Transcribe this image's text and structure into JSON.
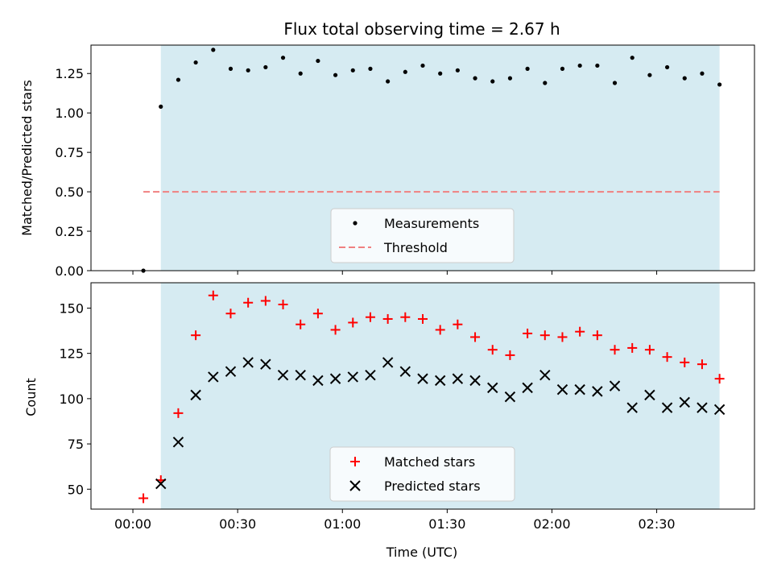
{
  "chart_data": [
    {
      "type": "scatter",
      "title": "Flux total observing time = 2.67 h",
      "xlabel": "",
      "ylabel": "Matched/Predicted stars",
      "x_unit": "minutes since 00:00 UTC",
      "xlim": [
        -12,
        178
      ],
      "ylim": [
        0,
        1.43
      ],
      "yticks": [
        0.0,
        0.25,
        0.5,
        0.75,
        1.0,
        1.25
      ],
      "ytick_labels": [
        "0.00",
        "0.25",
        "0.50",
        "0.75",
        "1.00",
        "1.25"
      ],
      "xticks": [
        0,
        30,
        60,
        90,
        120,
        150
      ],
      "shaded_span": [
        8,
        168
      ],
      "shade_color": "#add8e6",
      "threshold": {
        "y": 0.5,
        "x_range": [
          3,
          168
        ],
        "color": "#f08080"
      },
      "series": [
        {
          "name": "Measurements",
          "marker": "dot",
          "color": "#000000",
          "x": [
            3,
            8,
            13,
            18,
            23,
            28,
            33,
            38,
            43,
            48,
            53,
            58,
            63,
            68,
            73,
            78,
            83,
            88,
            93,
            98,
            103,
            108,
            113,
            118,
            123,
            128,
            133,
            138,
            143,
            148,
            153,
            158,
            163,
            168
          ],
          "y": [
            0.0,
            1.04,
            1.21,
            1.32,
            1.4,
            1.28,
            1.27,
            1.29,
            1.35,
            1.25,
            1.33,
            1.24,
            1.27,
            1.28,
            1.2,
            1.26,
            1.3,
            1.25,
            1.27,
            1.22,
            1.2,
            1.22,
            1.28,
            1.19,
            1.28,
            1.3,
            1.3,
            1.19,
            1.35,
            1.24,
            1.29,
            1.22,
            1.25,
            1.18
          ]
        }
      ],
      "legend": {
        "position": "lower-center",
        "entries": [
          "Measurements",
          "Threshold"
        ]
      }
    },
    {
      "type": "scatter",
      "title": "",
      "xlabel": "Time (UTC)",
      "ylabel": "Count",
      "x_unit": "minutes since 00:00 UTC",
      "xlim": [
        -12,
        178
      ],
      "ylim": [
        39,
        164
      ],
      "yticks": [
        50,
        75,
        100,
        125,
        150
      ],
      "ytick_labels": [
        "50",
        "75",
        "100",
        "125",
        "150"
      ],
      "xticks": [
        0,
        30,
        60,
        90,
        120,
        150
      ],
      "xtick_labels": [
        "00:00",
        "00:30",
        "01:00",
        "01:30",
        "02:00",
        "02:30"
      ],
      "shaded_span": [
        8,
        168
      ],
      "shade_color": "#add8e6",
      "series": [
        {
          "name": "Matched stars",
          "marker": "plus",
          "color": "#ff0000",
          "x": [
            3,
            8,
            13,
            18,
            23,
            28,
            33,
            38,
            43,
            48,
            53,
            58,
            63,
            68,
            73,
            78,
            83,
            88,
            93,
            98,
            103,
            108,
            113,
            118,
            123,
            128,
            133,
            138,
            143,
            148,
            153,
            158,
            163,
            168
          ],
          "y": [
            45,
            55,
            92,
            135,
            157,
            147,
            153,
            154,
            152,
            141,
            147,
            138,
            142,
            145,
            144,
            145,
            144,
            138,
            141,
            134,
            127,
            124,
            136,
            135,
            134,
            137,
            135,
            127,
            128,
            127,
            123,
            120,
            119,
            111
          ]
        },
        {
          "name": "Predicted stars",
          "marker": "x",
          "color": "#000000",
          "x": [
            8,
            13,
            18,
            23,
            28,
            33,
            38,
            43,
            48,
            53,
            58,
            63,
            68,
            73,
            78,
            83,
            88,
            93,
            98,
            103,
            108,
            113,
            118,
            123,
            128,
            133,
            138,
            143,
            148,
            153,
            158,
            163,
            168
          ],
          "y": [
            53,
            76,
            102,
            112,
            115,
            120,
            119,
            113,
            113,
            110,
            111,
            112,
            113,
            120,
            115,
            111,
            110,
            111,
            110,
            106,
            101,
            106,
            113,
            105,
            105,
            104,
            107,
            95,
            102,
            95,
            98,
            95,
            94
          ]
        }
      ],
      "legend": {
        "position": "lower-center",
        "entries": [
          "Matched stars",
          "Predicted stars"
        ]
      }
    }
  ]
}
